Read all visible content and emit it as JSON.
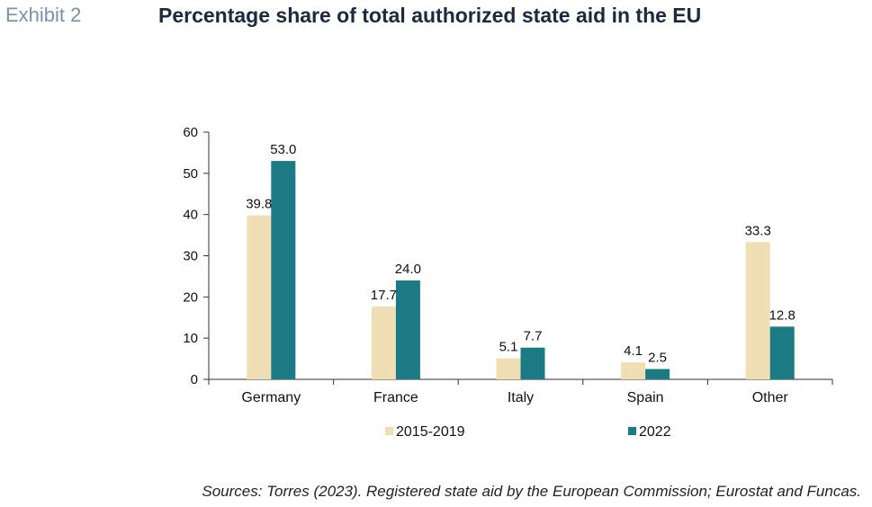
{
  "header": {
    "exhibit": "Exhibit 2",
    "title": "Percentage share of total authorized state aid in the EU"
  },
  "footer": {
    "sources": "Sources: Torres (2023). Registered state aid by the European Commission; Eurostat and Funcas."
  },
  "colors": {
    "series_1": "#f0deb4",
    "series_2": "#1c7a84",
    "axis": "#333333"
  },
  "chart_data": {
    "type": "bar",
    "title": "Percentage share of total authorized state aid in the EU",
    "xlabel": "",
    "ylabel": "",
    "categories": [
      "Germany",
      "France",
      "Italy",
      "Spain",
      "Other"
    ],
    "series": [
      {
        "name": "2015-2019",
        "values": [
          39.8,
          17.7,
          5.1,
          4.1,
          33.3
        ]
      },
      {
        "name": "2022",
        "values": [
          53.0,
          24.0,
          7.7,
          2.5,
          12.8
        ]
      }
    ],
    "ylim": [
      0,
      60
    ],
    "yticks": [
      0,
      10,
      20,
      30,
      40,
      50,
      60
    ],
    "grid": false,
    "legend": "bottom"
  }
}
